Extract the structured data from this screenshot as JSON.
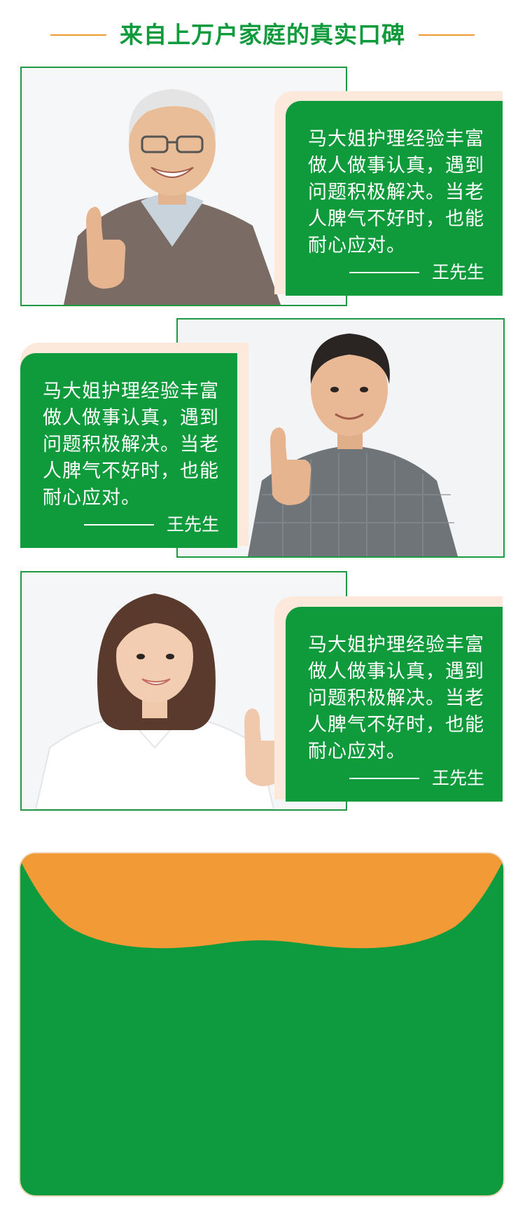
{
  "header": {
    "title": "来自上万户家庭的真实口碑"
  },
  "testimonials": [
    {
      "photo_icon": "elderly-man-thumbs-up-photo",
      "text": "马大姐护理经验丰富做人做事认真，遇到问题积极解决。当老人脾气不好时，也能耐心应对。",
      "author": "王先生"
    },
    {
      "photo_icon": "young-man-thumbs-up-photo",
      "text": "马大姐护理经验丰富做人做事认真，遇到问题积极解决。当老人脾气不好时，也能耐心应对。",
      "author": "王先生"
    },
    {
      "photo_icon": "young-woman-thumbs-up-photo",
      "text": "马大姐护理经验丰富做人做事认真，遇到问题积极解决。当老人脾气不好时，也能耐心应对。",
      "author": "王先生"
    }
  ],
  "colors": {
    "green": "#0f9a3c",
    "orange": "#f29a36",
    "peach": "#fde9dc"
  }
}
